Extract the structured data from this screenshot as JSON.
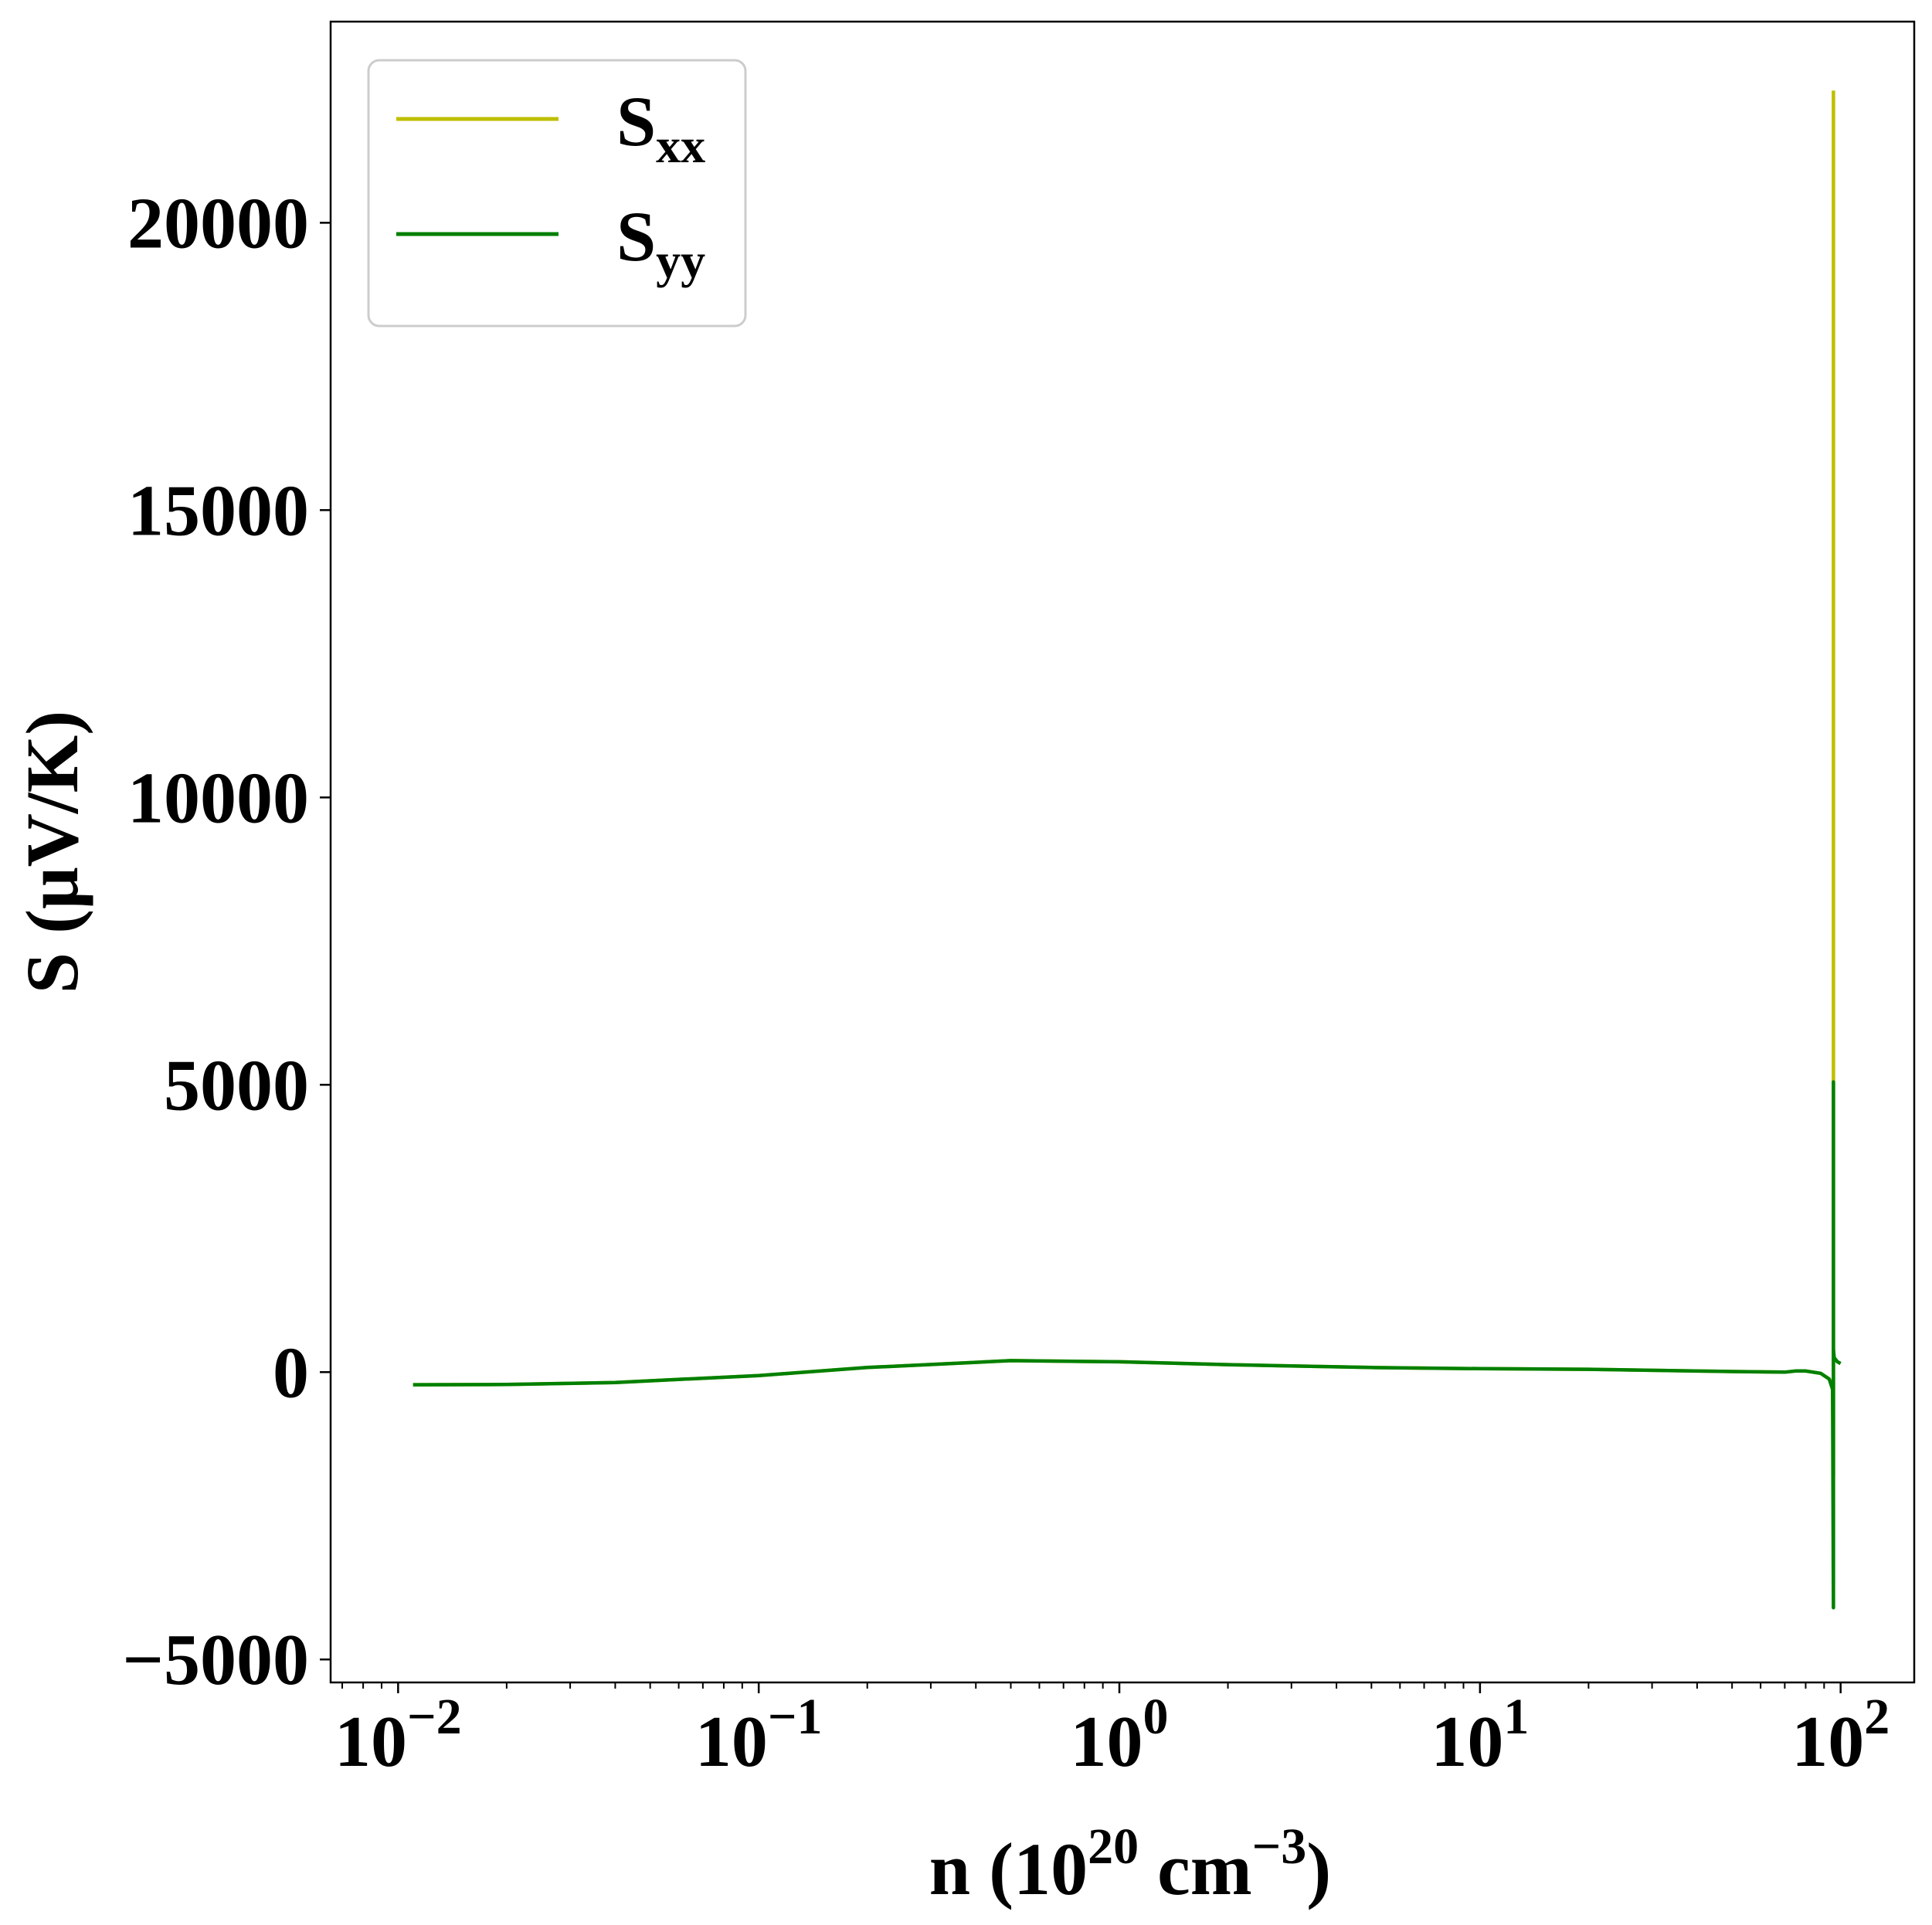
{
  "chart_data": {
    "type": "line",
    "xscale": "log",
    "xlim": [
      0.0065,
      160
    ],
    "ylim": [
      -5400,
      23500
    ],
    "grid": false,
    "legend": "top-left",
    "xlabel": {
      "base": "n (10",
      "sup1": "20",
      "mid": " cm",
      "sup2": "−3",
      "end": ")"
    },
    "ylabel": "S (μV/K)",
    "xticks": [
      {
        "value": 0.01,
        "base": "10",
        "exp": "−2"
      },
      {
        "value": 0.1,
        "base": "10",
        "exp": "−1"
      },
      {
        "value": 1,
        "base": "10",
        "exp": "0"
      },
      {
        "value": 10,
        "base": "10",
        "exp": "1"
      },
      {
        "value": 100,
        "base": "10",
        "exp": "2"
      }
    ],
    "yticks": [
      {
        "value": -5000,
        "label": "−5000"
      },
      {
        "value": 0,
        "label": "0"
      },
      {
        "value": 5000,
        "label": "5000"
      },
      {
        "value": 10000,
        "label": "10000"
      },
      {
        "value": 15000,
        "label": "15000"
      },
      {
        "value": 20000,
        "label": "20000"
      }
    ],
    "series": [
      {
        "name": "S",
        "sub": "xx",
        "color": "#bfbf00",
        "x": [
          0.011,
          0.02,
          0.04,
          0.1,
          0.2,
          0.5,
          1,
          2,
          5,
          10,
          20,
          50,
          70,
          75,
          80,
          88,
          93,
          95,
          95.5,
          95.5,
          95.5
        ],
        "y": [
          -220,
          -215,
          -180,
          -60,
          80,
          200,
          180,
          130,
          80,
          60,
          50,
          10,
          0,
          20,
          20,
          -20,
          -120,
          -300,
          -1800,
          3500,
          22300
        ]
      },
      {
        "name": "S",
        "sub": "yy",
        "color": "#008000",
        "x": [
          0.011,
          0.02,
          0.04,
          0.1,
          0.2,
          0.5,
          1,
          2,
          5,
          10,
          20,
          50,
          70,
          75,
          80,
          88,
          93,
          95,
          95.5,
          95.5,
          95.5,
          96,
          98,
          100
        ],
        "y": [
          -220,
          -215,
          -180,
          -60,
          80,
          200,
          180,
          130,
          80,
          60,
          50,
          10,
          0,
          20,
          20,
          -20,
          -120,
          -300,
          -4100,
          5050,
          400,
          250,
          180,
          150
        ]
      }
    ]
  }
}
